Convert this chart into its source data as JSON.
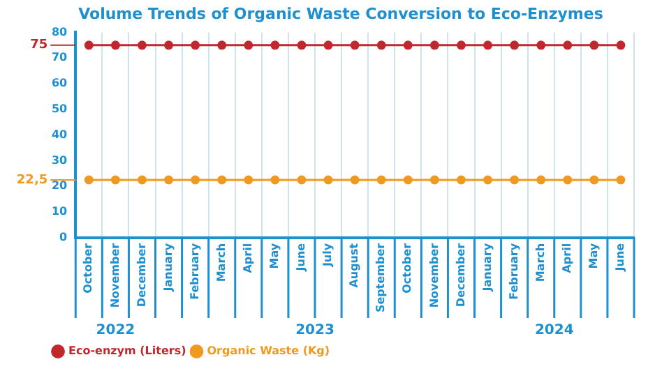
{
  "chart_data": {
    "type": "line",
    "title": "Volume Trends of Organic Waste Conversion to Eco-Enzymes",
    "categories": [
      "October",
      "November",
      "December",
      "January",
      "February",
      "March",
      "April",
      "May",
      "June",
      "July",
      "August",
      "September",
      "October",
      "November",
      "December",
      "January",
      "February",
      "March",
      "April",
      "May",
      "June"
    ],
    "series": [
      {
        "name": "Eco-enzym (Liters)",
        "color": "#c0282d",
        "values": [
          75,
          75,
          75,
          75,
          75,
          75,
          75,
          75,
          75,
          75,
          75,
          75,
          75,
          75,
          75,
          75,
          75,
          75,
          75,
          75,
          75
        ]
      },
      {
        "name": "Organic Waste (Kg)",
        "color": "#ef9a1f",
        "values": [
          22.5,
          22.5,
          22.5,
          22.5,
          22.5,
          22.5,
          22.5,
          22.5,
          22.5,
          22.5,
          22.5,
          22.5,
          22.5,
          22.5,
          22.5,
          22.5,
          22.5,
          22.5,
          22.5,
          22.5,
          22.5
        ]
      }
    ],
    "ylim": [
      0,
      80
    ],
    "yticks": [
      0,
      10,
      20,
      30,
      40,
      50,
      60,
      70,
      80
    ],
    "ref_lines": [
      {
        "axis": "y",
        "value": 75,
        "label": "75",
        "color": "#c0282d"
      },
      {
        "axis": "y",
        "value": 22.5,
        "label": "22,5",
        "color": "#ef9a1f"
      }
    ],
    "annotations": [
      "2022",
      "2023",
      "2024"
    ],
    "grid": "x",
    "legend": "bottom left",
    "marker": "circle",
    "line_style": "solid"
  }
}
